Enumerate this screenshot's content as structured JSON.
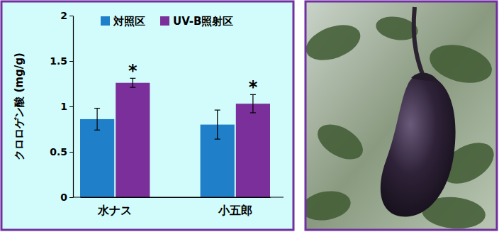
{
  "chart_data": {
    "type": "bar",
    "y_label": "クロロゲン酸 (mg/g)",
    "categories": [
      "水ナス",
      "小五郎"
    ],
    "series": [
      {
        "name": "対照区",
        "color": "#1f7fc8",
        "values": [
          0.86,
          0.8
        ],
        "errors": [
          0.12,
          0.16
        ]
      },
      {
        "name": "UV-B照射区",
        "color": "#7a2f9a",
        "values": [
          1.26,
          1.03
        ],
        "errors": [
          0.05,
          0.1
        ],
        "significance": [
          "*",
          "*"
        ]
      }
    ],
    "ylim": [
      0,
      2
    ],
    "yticks": [
      0,
      0.5,
      1,
      1.5,
      2
    ],
    "grid": false,
    "legend": "top-right"
  }
}
